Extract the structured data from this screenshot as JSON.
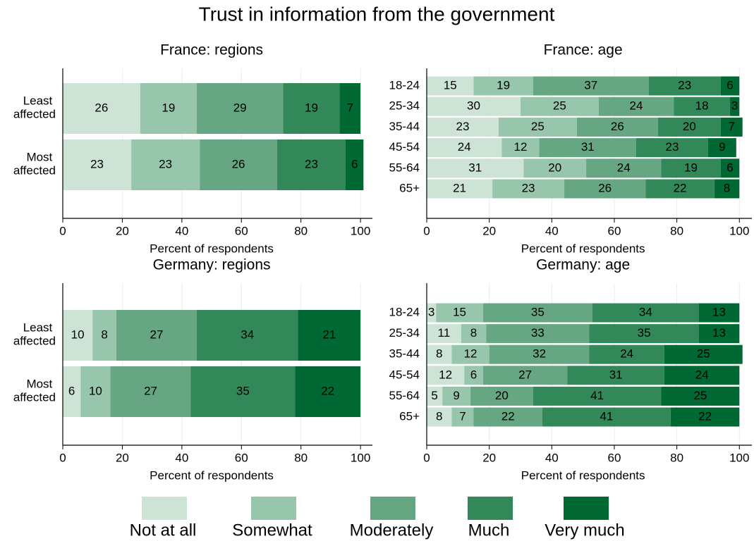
{
  "title": "Trust in information from the government",
  "legend": [
    {
      "name": "Not at all",
      "color": "#cce3d6"
    },
    {
      "name": "Somewhat",
      "color": "#98c6ac"
    },
    {
      "name": "Moderately",
      "color": "#66a682"
    },
    {
      "name": "Much",
      "color": "#33885a"
    },
    {
      "name": "Very much",
      "color": "#006933"
    }
  ],
  "chart_data": [
    {
      "type": "stacked-barh",
      "title": "France: regions",
      "x_label": "Percent of respondents",
      "categories": [
        "Least affected",
        "Most affected"
      ],
      "series": [
        {
          "values": [
            26,
            23
          ]
        },
        {
          "values": [
            19,
            23
          ]
        },
        {
          "values": [
            29,
            26
          ]
        },
        {
          "values": [
            19,
            23
          ]
        },
        {
          "values": [
            7,
            6
          ]
        }
      ],
      "xlim": [
        0,
        104
      ],
      "xticks": [
        0,
        20,
        40,
        60,
        80,
        100
      ],
      "grid": true
    },
    {
      "type": "stacked-barh",
      "title": "France: age",
      "x_label": "Percent of respondents",
      "categories": [
        "18-24",
        "25-34",
        "35-44",
        "45-54",
        "55-64",
        "65+"
      ],
      "series": [
        {
          "values": [
            15,
            30,
            23,
            24,
            31,
            21
          ]
        },
        {
          "values": [
            19,
            25,
            25,
            12,
            20,
            23
          ]
        },
        {
          "values": [
            37,
            24,
            26,
            31,
            24,
            26
          ]
        },
        {
          "values": [
            23,
            18,
            20,
            23,
            19,
            22
          ]
        },
        {
          "values": [
            6,
            3,
            7,
            9,
            6,
            8
          ]
        }
      ],
      "xlim": [
        0,
        104
      ],
      "xticks": [
        0,
        20,
        40,
        60,
        80,
        100
      ],
      "grid": true
    },
    {
      "type": "stacked-barh",
      "title": "Germany: regions",
      "x_label": "Percent of respondents",
      "categories": [
        "Least affected",
        "Most affected"
      ],
      "series": [
        {
          "values": [
            10,
            6
          ]
        },
        {
          "values": [
            8,
            10
          ]
        },
        {
          "values": [
            27,
            27
          ]
        },
        {
          "values": [
            34,
            35
          ]
        },
        {
          "values": [
            21,
            22
          ]
        }
      ],
      "xlim": [
        0,
        104
      ],
      "xticks": [
        0,
        20,
        40,
        60,
        80,
        100
      ],
      "grid": true
    },
    {
      "type": "stacked-barh",
      "title": "Germany: age",
      "x_label": "Percent of respondents",
      "categories": [
        "18-24",
        "25-34",
        "35-44",
        "45-54",
        "55-64",
        "65+"
      ],
      "series": [
        {
          "values": [
            3,
            11,
            8,
            12,
            5,
            8
          ]
        },
        {
          "values": [
            15,
            8,
            12,
            6,
            9,
            7
          ]
        },
        {
          "values": [
            35,
            33,
            32,
            27,
            20,
            22
          ]
        },
        {
          "values": [
            34,
            35,
            24,
            31,
            41,
            41
          ]
        },
        {
          "values": [
            13,
            13,
            25,
            24,
            25,
            22
          ]
        }
      ],
      "xlim": [
        0,
        104
      ],
      "xticks": [
        0,
        20,
        40,
        60,
        80,
        100
      ],
      "grid": true
    }
  ]
}
